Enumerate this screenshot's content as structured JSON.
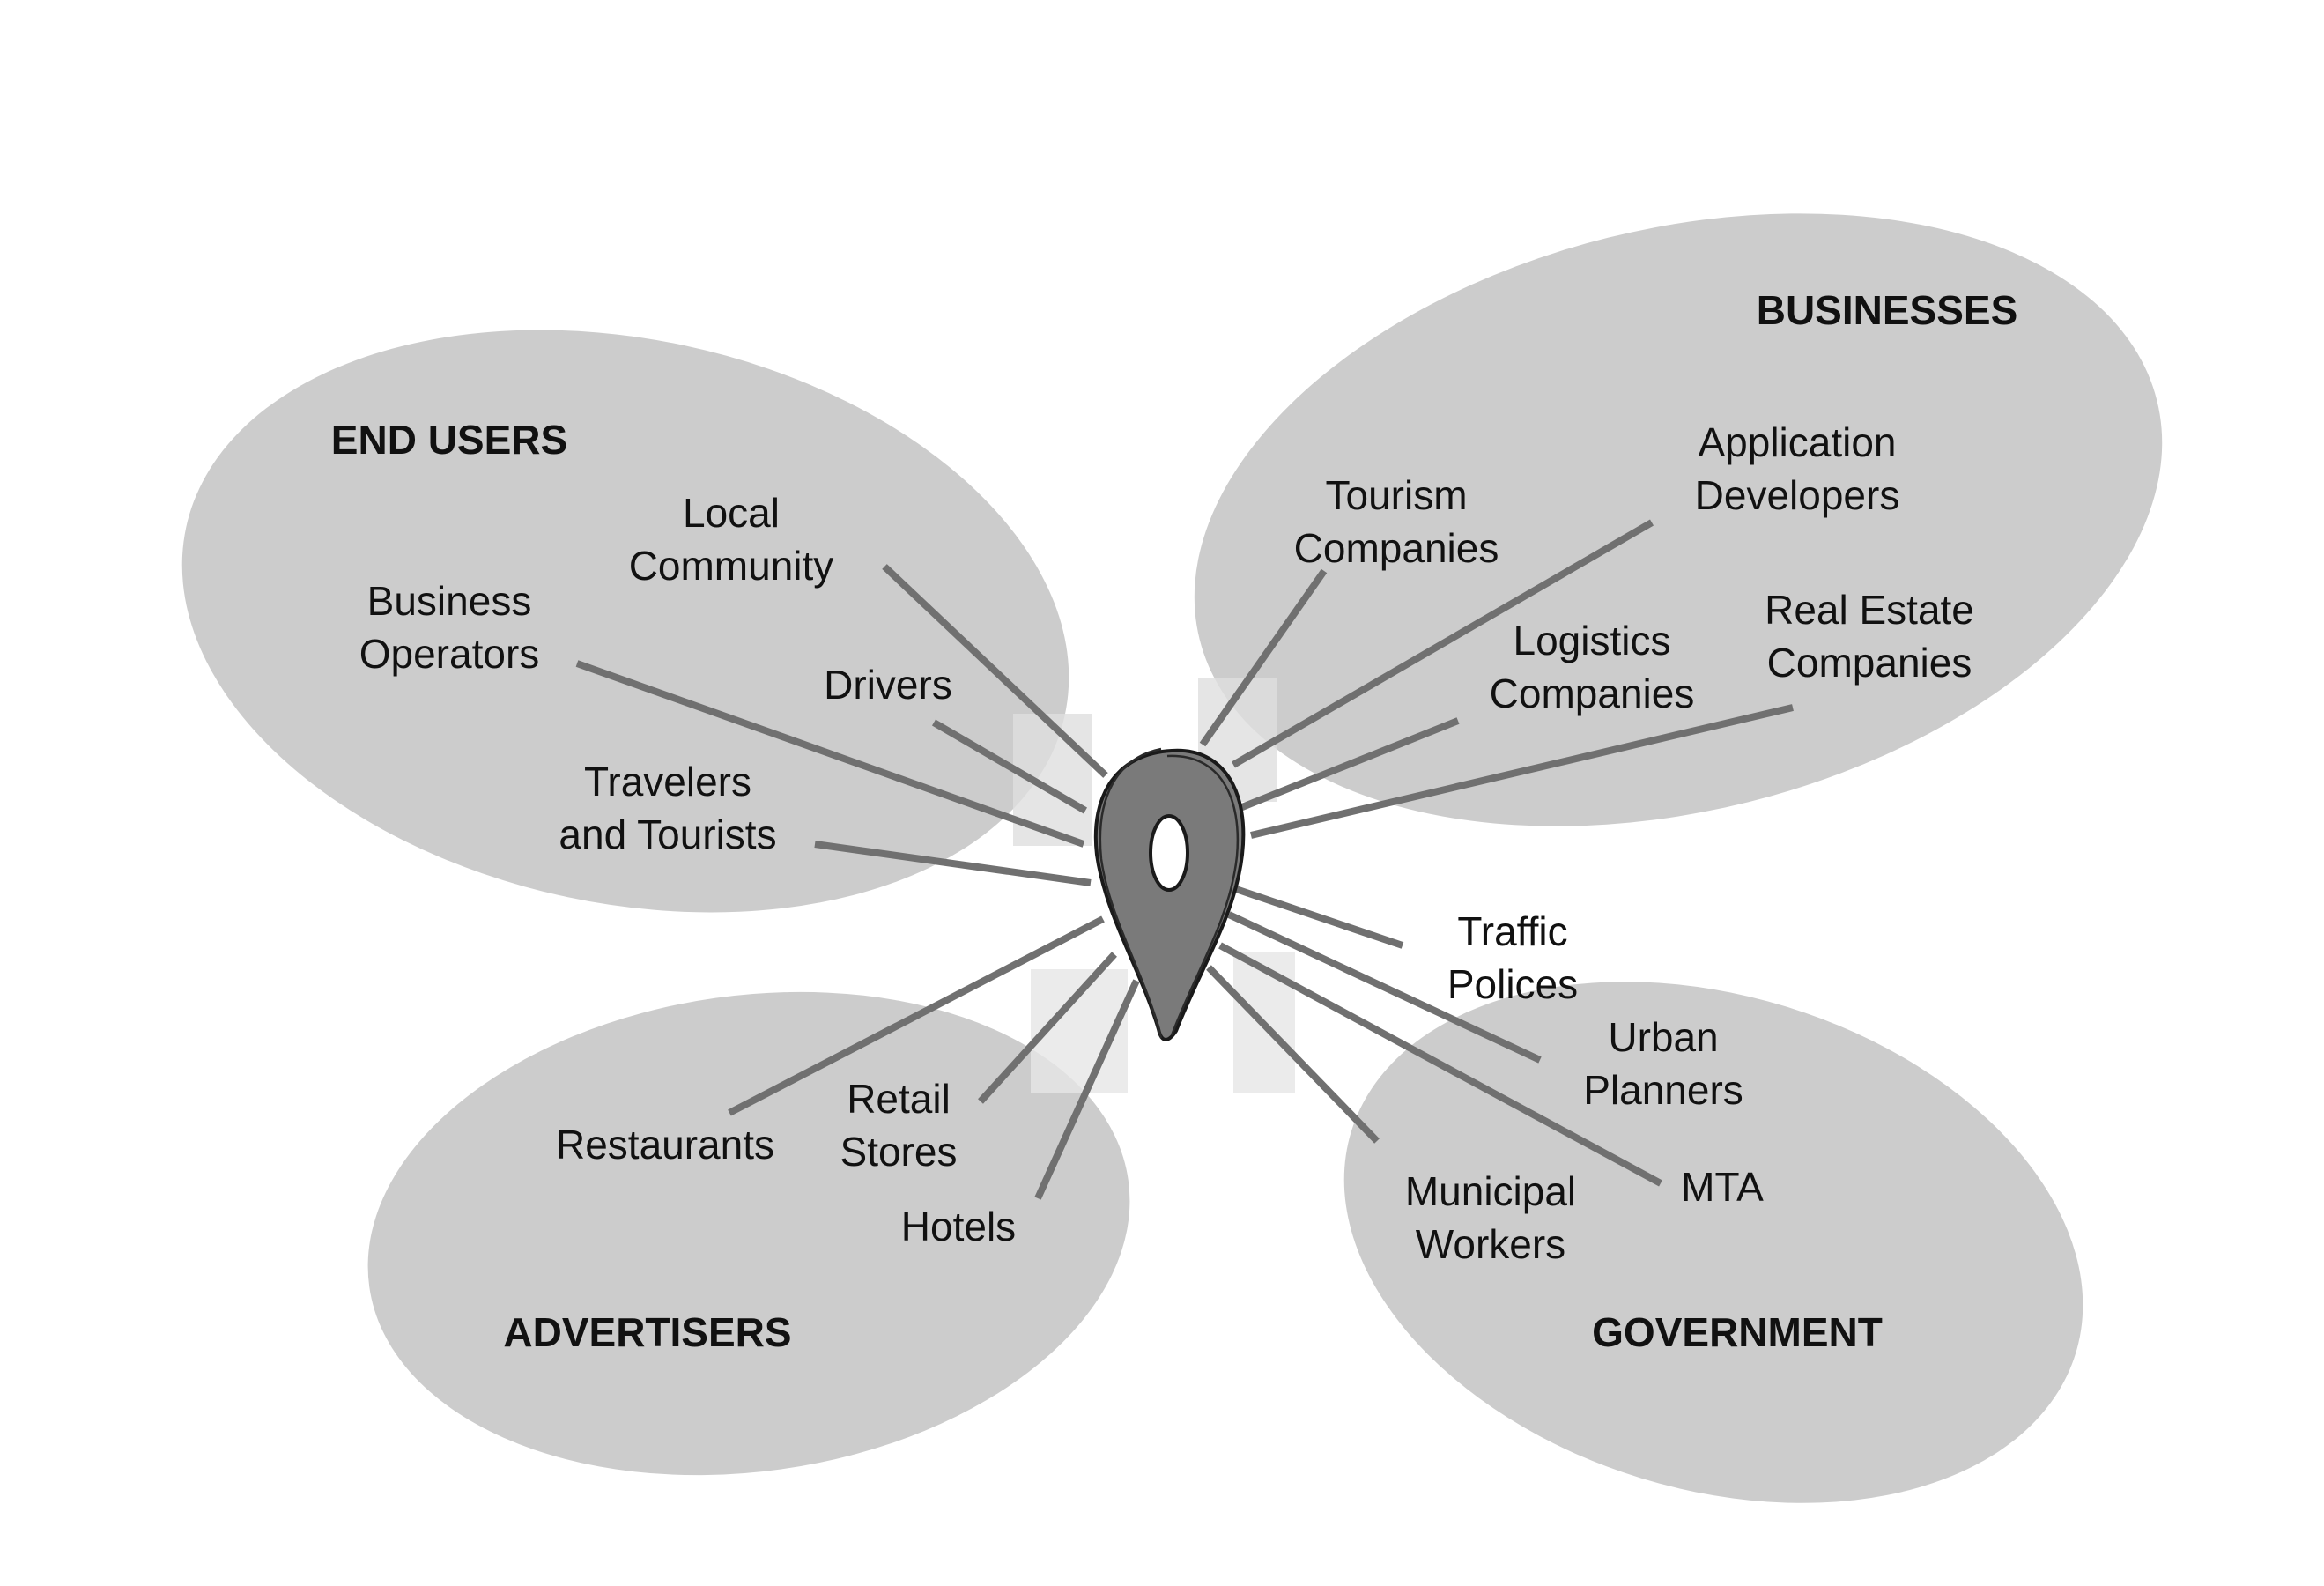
{
  "groups": {
    "end_users": {
      "title": "END USERS",
      "labels": [
        "Local",
        "Community",
        "Business",
        "Operators",
        "Drivers",
        "Travelers",
        "and Tourists"
      ]
    },
    "businesses": {
      "title": "BUSINESSES",
      "labels": [
        "Tourism",
        "Companies",
        "Application",
        "Developers",
        "Logistics",
        "Companies",
        "Real Estate",
        "Companies"
      ]
    },
    "advertisers": {
      "title": "ADVERTISERS",
      "labels": [
        "Restaurants",
        "Retail",
        "Stores",
        "Hotels"
      ]
    },
    "government": {
      "title": "GOVERNMENT",
      "labels": [
        "Traffic",
        "Polices",
        "Urban",
        "Planners",
        "Municipal",
        "Workers",
        "MTA"
      ]
    }
  },
  "center_icon": "map-pin-icon",
  "colors": {
    "petal": "#cccccc",
    "spoke": "#707070",
    "pin": "#7a7a7a",
    "text": "#111111"
  }
}
